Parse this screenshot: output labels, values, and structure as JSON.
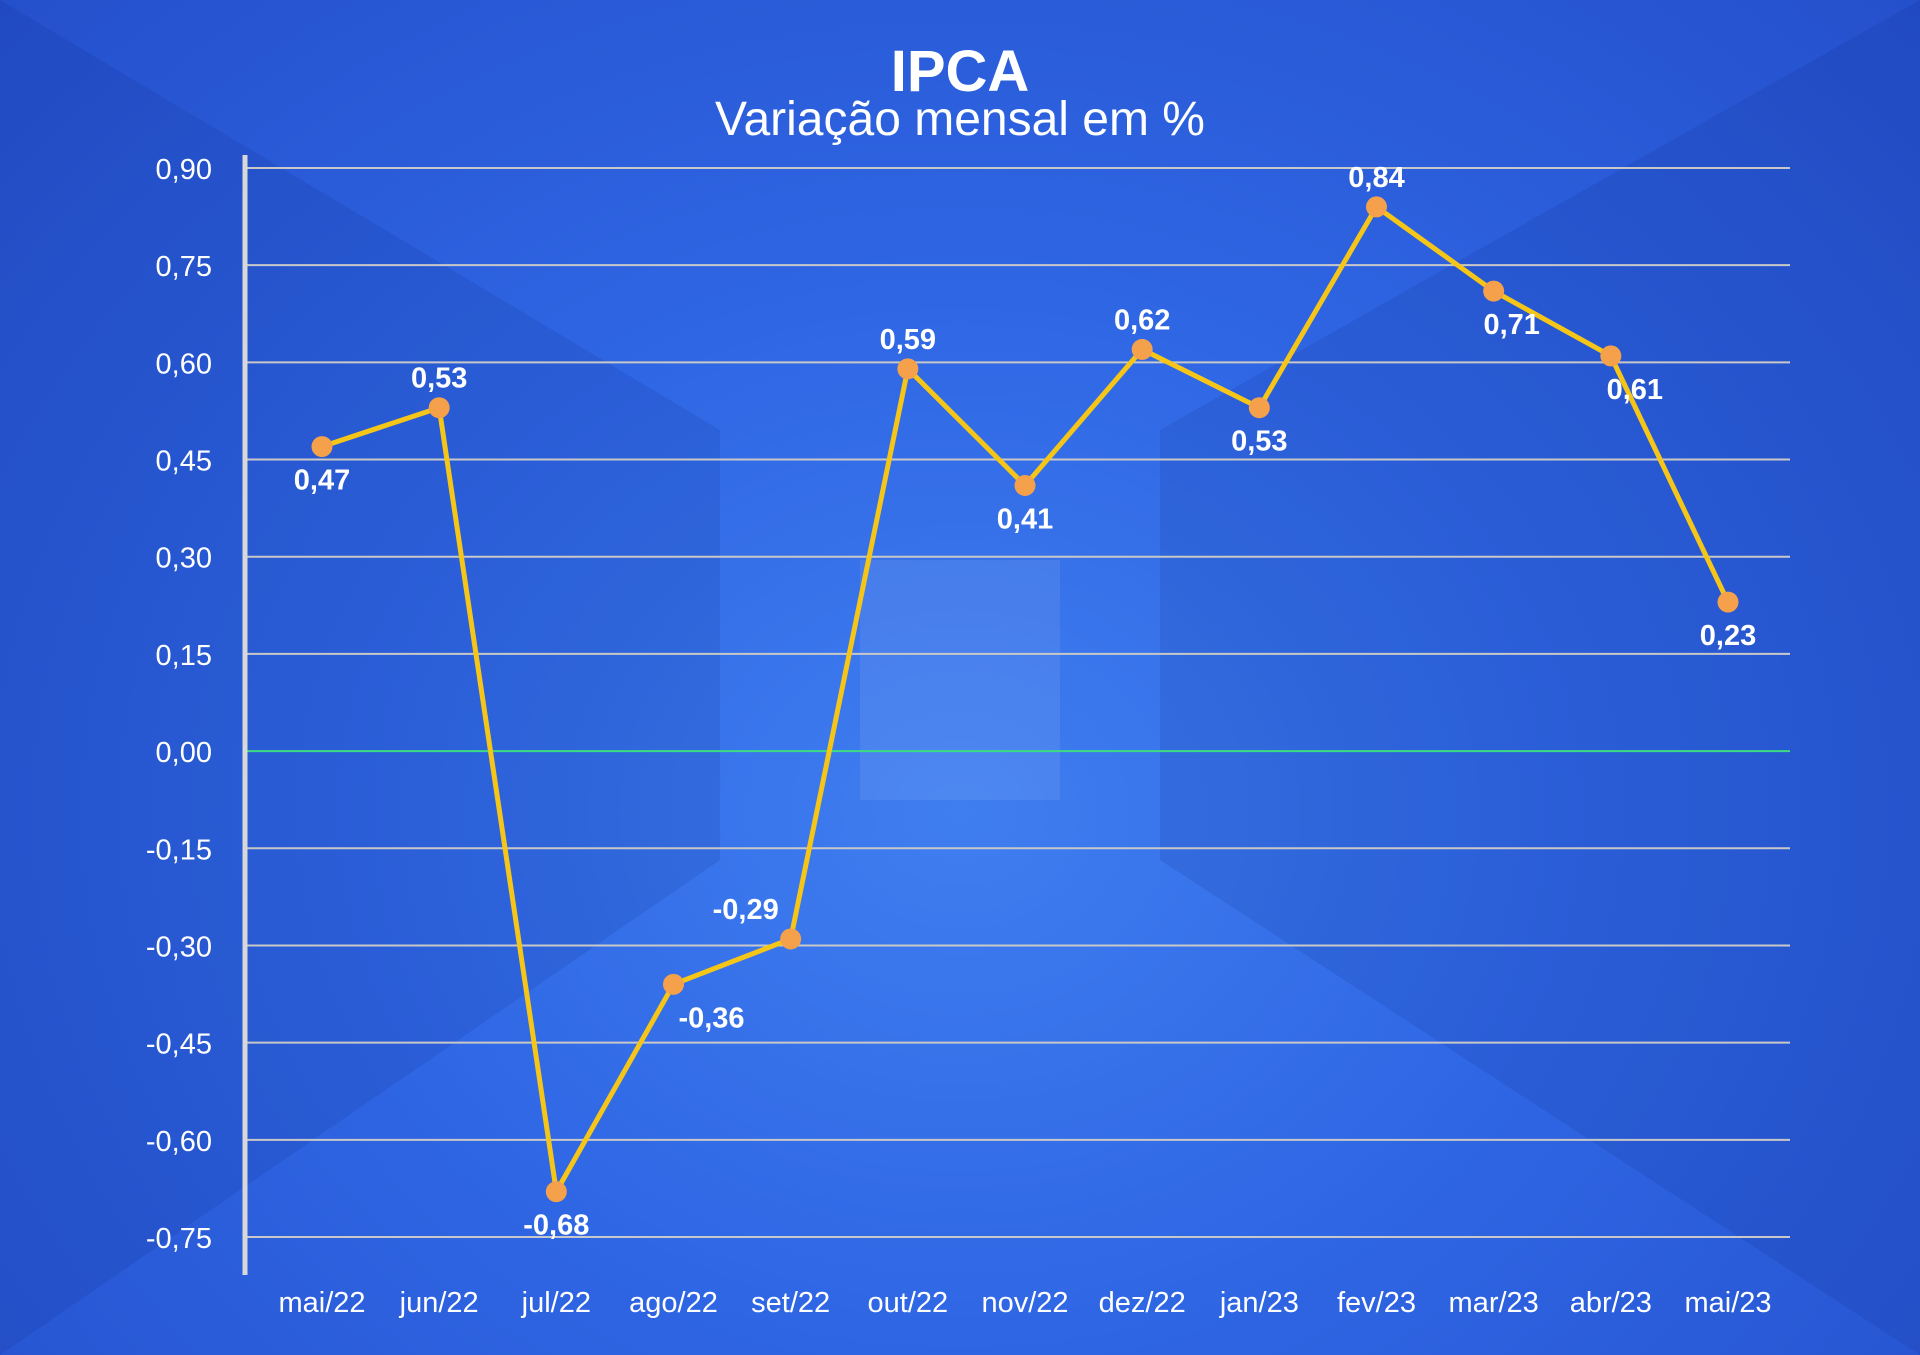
{
  "chart_data": {
    "type": "line",
    "title": "IPCA",
    "subtitle": "Variação mensal em %",
    "categories": [
      "mai/22",
      "jun/22",
      "jul/22",
      "ago/22",
      "set/22",
      "out/22",
      "nov/22",
      "dez/22",
      "jan/23",
      "fev/23",
      "mar/23",
      "abr/23",
      "mai/23"
    ],
    "series": [
      {
        "values": [
          0.47,
          0.53,
          -0.68,
          -0.36,
          -0.29,
          0.59,
          0.41,
          0.62,
          0.53,
          0.84,
          0.71,
          0.61,
          0.23
        ],
        "labels": [
          "0,47",
          "0,53",
          "-0,68",
          "-0,36",
          "-0,29",
          "0,59",
          "0,41",
          "0,62",
          "0,53",
          "0,84",
          "0,71",
          "0,61",
          "0,23"
        ]
      }
    ],
    "y_ticks": [
      0.9,
      0.75,
      0.6,
      0.45,
      0.3,
      0.15,
      0.0,
      -0.15,
      -0.3,
      -0.45,
      -0.6,
      -0.75
    ],
    "y_tick_labels": [
      "0,90",
      "0,75",
      "0,60",
      "0,45",
      "0,30",
      "0,15",
      "0,00",
      "-0,15",
      "-0,30",
      "-0,45",
      "-0,60",
      "-0,75"
    ],
    "ylim": [
      -0.75,
      0.9
    ],
    "grid": true,
    "legend": "none"
  },
  "colors": {
    "background": "#2f66e4",
    "line": "#f5c518",
    "marker": "#f5a04a",
    "zero_line": "#3ddc84",
    "grid": "#c8c8c8",
    "text": "#ffffff"
  }
}
